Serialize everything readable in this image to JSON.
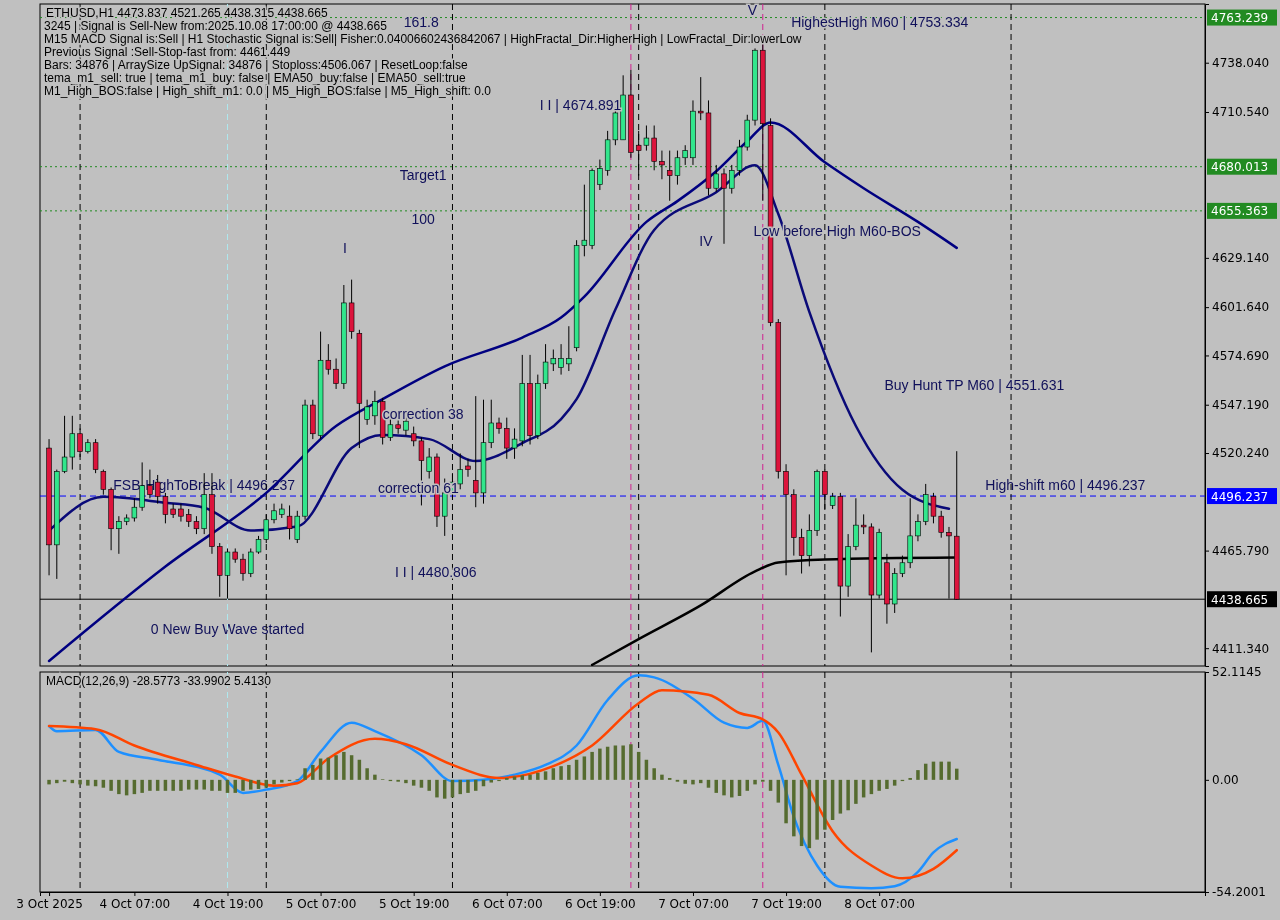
{
  "chart_data": [
    {
      "type": "candlestick",
      "title": "ETHUSD,H1  4473.837 4521.265 4438.315 4438.665",
      "annotations": [
        "3245 | Signal is Sell-New from:2025.10.08 17:00:00 @ 4438.665",
        "M15 MACD Signal is:Sell | H1 Stochastic Signal is:Sell| Fisher:0.04006602436842067 | HighFractal_Dir:HigherHigh | LowFractal_Dir:lowerLow",
        "Previous Signal :Sell-Stop-fast from: 4461.449",
        "Bars: 34876 | ArraySize UpSignal: 34876 | Stoploss:4506.067 | ResetLoop:false",
        "tema_m1_sell: true | tema_m1_buy: false | EMA50_buy:false | EMA50_sell:true",
        "M1_High_BOS:false | High_shift_m1: 0.0 | M5_High_BOS:false | M5_High_shift: 0.0",
        "161.8",
        "Target1",
        "100",
        "I",
        "I I | 4674.891",
        "I I | 4480.806",
        "correction 38",
        "correction 61",
        "IV",
        "V",
        "HighestHigh   M60 | 4753.334",
        "Low before High   M60-BOS",
        "Buy Hunt TP M60 | 4551.631",
        {
          "text": "High-shift m60 | 4496.237",
          "x": "2025-10-09T07:00",
          "y": 4496.237
        },
        {
          "text": "FSB-HighToBreak | 4496.237",
          "x": "2025-10-04T16:00",
          "y": 4496.237
        },
        {
          "text": "0 New Buy Wave started",
          "x": "2025-10-04T19:00",
          "y": 4416
        }
      ],
      "xlim": [
        "2025-10-03T18:50",
        "2025-10-10T01:00"
      ],
      "ylim": [
        4401.4,
        4770.8
      ],
      "yticks": [
        {
          "value": 4738.04,
          "label": "4738.040"
        },
        {
          "value": 4710.54,
          "label": "4710.540"
        },
        {
          "value": 4629.14,
          "label": "4629.140"
        },
        {
          "value": 4601.64,
          "label": "4601.640"
        },
        {
          "value": 4574.69,
          "label": "4574.690"
        },
        {
          "value": 4547.19,
          "label": "4547.190"
        },
        {
          "value": 4520.24,
          "label": "4520.240"
        },
        {
          "value": 4465.79,
          "label": "4465.790"
        },
        {
          "value": 4411.34,
          "label": "4411.340"
        }
      ],
      "tick_labels": "y",
      "ref_lines": [
        {
          "axis": "y",
          "value": 4763.239,
          "label": "4763.239",
          "color": "#228b22",
          "line_style": "dotted"
        },
        {
          "axis": "y",
          "value": 4680.013,
          "label": "4680.013",
          "color": "#228b22",
          "line_style": "dotted"
        },
        {
          "axis": "y",
          "value": 4655.363,
          "label": "4655.363",
          "color": "#228b22",
          "line_style": "dotted"
        },
        {
          "axis": "y",
          "value": 4496.237,
          "label": "4496.237",
          "color": "#0000ff",
          "line_style": "dashed"
        },
        {
          "axis": "y",
          "value": 4438.665,
          "label": "4438.665",
          "color": "#000000",
          "line_style": "solid"
        },
        {
          "axis": "x",
          "value": "2025-10-04T00:00",
          "color": "#000000",
          "line_style": "dashed"
        },
        {
          "axis": "x",
          "value": "2025-10-05T00:00",
          "color": "#000000",
          "line_style": "dashed"
        },
        {
          "axis": "x",
          "value": "2025-10-06T00:00",
          "color": "#000000",
          "line_style": "dashed"
        },
        {
          "axis": "x",
          "value": "2025-10-07T00:00",
          "color": "#000000",
          "line_style": "dashed"
        },
        {
          "axis": "x",
          "value": "2025-10-08T00:00",
          "color": "#000000",
          "line_style": "dashed"
        },
        {
          "axis": "x",
          "value": "2025-10-09T00:00",
          "color": "#000000",
          "line_style": "dashed"
        },
        {
          "axis": "x",
          "value": "2025-10-04T19:00",
          "color": "#aee8ee",
          "line_style": "dashed"
        },
        {
          "axis": "x",
          "value": "2025-10-06T23:00",
          "color": "#d02090",
          "line_style": "dashed"
        },
        {
          "axis": "x",
          "value": "2025-10-07T16:00",
          "color": "#d02090",
          "line_style": "dashed"
        }
      ],
      "x": [
        "2025-10-03T20:00",
        "2025-10-03T21:00",
        "2025-10-03T22:00",
        "2025-10-03T23:00",
        "2025-10-04T00:00",
        "2025-10-04T01:00",
        "2025-10-04T02:00",
        "2025-10-04T03:00",
        "2025-10-04T04:00",
        "2025-10-04T05:00",
        "2025-10-04T06:00",
        "2025-10-04T07:00",
        "2025-10-04T08:00",
        "2025-10-04T09:00",
        "2025-10-04T10:00",
        "2025-10-04T11:00",
        "2025-10-04T12:00",
        "2025-10-04T13:00",
        "2025-10-04T14:00",
        "2025-10-04T15:00",
        "2025-10-04T16:00",
        "2025-10-04T17:00",
        "2025-10-04T18:00",
        "2025-10-04T19:00",
        "2025-10-04T20:00",
        "2025-10-04T21:00",
        "2025-10-04T22:00",
        "2025-10-04T23:00",
        "2025-10-05T00:00",
        "2025-10-05T01:00",
        "2025-10-05T02:00",
        "2025-10-05T03:00",
        "2025-10-05T04:00",
        "2025-10-05T05:00",
        "2025-10-05T06:00",
        "2025-10-05T07:00",
        "2025-10-05T08:00",
        "2025-10-05T09:00",
        "2025-10-05T10:00",
        "2025-10-05T11:00",
        "2025-10-05T12:00",
        "2025-10-05T13:00",
        "2025-10-05T14:00",
        "2025-10-05T15:00",
        "2025-10-05T16:00",
        "2025-10-05T17:00",
        "2025-10-05T18:00",
        "2025-10-05T19:00",
        "2025-10-05T20:00",
        "2025-10-05T21:00",
        "2025-10-05T22:00",
        "2025-10-05T23:00",
        "2025-10-06T00:00",
        "2025-10-06T01:00",
        "2025-10-06T02:00",
        "2025-10-06T03:00",
        "2025-10-06T04:00",
        "2025-10-06T05:00",
        "2025-10-06T06:00",
        "2025-10-06T07:00",
        "2025-10-06T08:00",
        "2025-10-06T09:00",
        "2025-10-06T10:00",
        "2025-10-06T11:00",
        "2025-10-06T12:00",
        "2025-10-06T13:00",
        "2025-10-06T14:00",
        "2025-10-06T15:00",
        "2025-10-06T16:00",
        "2025-10-06T17:00",
        "2025-10-06T18:00",
        "2025-10-06T19:00",
        "2025-10-06T20:00",
        "2025-10-06T21:00",
        "2025-10-06T22:00",
        "2025-10-06T23:00",
        "2025-10-07T00:00",
        "2025-10-07T01:00",
        "2025-10-07T02:00",
        "2025-10-07T03:00",
        "2025-10-07T04:00",
        "2025-10-07T05:00",
        "2025-10-07T06:00",
        "2025-10-07T07:00",
        "2025-10-07T08:00",
        "2025-10-07T09:00",
        "2025-10-07T10:00",
        "2025-10-07T11:00",
        "2025-10-07T12:00",
        "2025-10-07T13:00",
        "2025-10-07T14:00",
        "2025-10-07T15:00",
        "2025-10-07T16:00",
        "2025-10-07T17:00",
        "2025-10-07T18:00",
        "2025-10-07T19:00",
        "2025-10-07T20:00",
        "2025-10-07T21:00",
        "2025-10-07T22:00",
        "2025-10-07T23:00",
        "2025-10-08T00:00",
        "2025-10-08T01:00",
        "2025-10-08T02:00",
        "2025-10-08T03:00",
        "2025-10-08T04:00",
        "2025-10-08T05:00",
        "2025-10-08T06:00",
        "2025-10-08T07:00",
        "2025-10-08T08:00",
        "2025-10-08T09:00",
        "2025-10-08T10:00",
        "2025-10-08T11:00",
        "2025-10-08T12:00",
        "2025-10-08T13:00",
        "2025-10-08T14:00",
        "2025-10-08T15:00",
        "2025-10-08T16:00",
        "2025-10-08T17:00"
      ],
      "ohlc": [
        [
          4523,
          4528,
          4452,
          4469
        ],
        [
          4469,
          4511,
          4450,
          4510
        ],
        [
          4510,
          4541,
          4509,
          4518
        ],
        [
          4518,
          4541,
          4511,
          4531
        ],
        [
          4531,
          4534,
          4518,
          4521
        ],
        [
          4521,
          4528,
          4520,
          4526
        ],
        [
          4526,
          4528,
          4509,
          4511
        ],
        [
          4510,
          4511,
          4497,
          4500
        ],
        [
          4500,
          4501,
          4466,
          4478
        ],
        [
          4478,
          4485,
          4464,
          4482
        ],
        [
          4482,
          4486,
          4480,
          4484
        ],
        [
          4484,
          4495,
          4482,
          4490
        ],
        [
          4490,
          4515,
          4488,
          4502
        ],
        [
          4502,
          4511,
          4495,
          4497
        ],
        [
          4504,
          4508,
          4492,
          4496
        ],
        [
          4496,
          4498,
          4481,
          4486
        ],
        [
          4489,
          4492,
          4484,
          4486
        ],
        [
          4489,
          4492,
          4482,
          4485
        ],
        [
          4486,
          4489,
          4479,
          4482
        ],
        [
          4482,
          4485,
          4475,
          4478
        ],
        [
          4478,
          4509,
          4475,
          4497
        ],
        [
          4497,
          4509,
          4464,
          4468
        ],
        [
          4468,
          4470,
          4440,
          4452
        ],
        [
          4452,
          4467,
          4439,
          4465
        ],
        [
          4465,
          4467,
          4459,
          4461
        ],
        [
          4461,
          4464,
          4449,
          4453
        ],
        [
          4453,
          4467,
          4451,
          4465
        ],
        [
          4465,
          4474,
          4464,
          4472
        ],
        [
          4472,
          4486,
          4470,
          4483
        ],
        [
          4483,
          4492,
          4481,
          4488
        ],
        [
          4486,
          4492,
          4484,
          4489
        ],
        [
          4485,
          4491,
          4472,
          4478
        ],
        [
          4472,
          4488,
          4470,
          4485
        ],
        [
          4485,
          4550,
          4483,
          4547
        ],
        [
          4547,
          4550,
          4528,
          4531
        ],
        [
          4530,
          4588,
          4528,
          4572
        ],
        [
          4572,
          4581,
          4564,
          4567
        ],
        [
          4567,
          4573,
          4556,
          4559
        ],
        [
          4559,
          4614,
          4556,
          4604
        ],
        [
          4604,
          4617,
          4584,
          4588
        ],
        [
          4587,
          4589,
          4523,
          4548
        ],
        [
          4539,
          4550,
          4536,
          4546
        ],
        [
          4541,
          4555,
          4536,
          4549
        ],
        [
          4549,
          4551,
          4525,
          4529
        ],
        [
          4529,
          4539,
          4527,
          4536
        ],
        [
          4536,
          4539,
          4531,
          4534
        ],
        [
          4533,
          4540,
          4530,
          4538
        ],
        [
          4531,
          4535,
          4524,
          4527
        ],
        [
          4527,
          4529,
          4491,
          4516
        ],
        [
          4510,
          4523,
          4506,
          4518
        ],
        [
          4518,
          4520,
          4479,
          4485
        ],
        [
          4485,
          4506,
          4474,
          4498
        ],
        [
          4498,
          4509,
          4495,
          4504
        ],
        [
          4503,
          4520,
          4500,
          4511
        ],
        [
          4513,
          4517,
          4507,
          4511
        ],
        [
          4505,
          4552,
          4490,
          4498
        ],
        [
          4498,
          4550,
          4492,
          4526
        ],
        [
          4526,
          4550,
          4523,
          4537
        ],
        [
          4537,
          4540,
          4531,
          4534
        ],
        [
          4534,
          4540,
          4517,
          4523
        ],
        [
          4523,
          4534,
          4517,
          4528
        ],
        [
          4527,
          4575,
          4524,
          4559
        ],
        [
          4559,
          4575,
          4525,
          4530
        ],
        [
          4530,
          4564,
          4528,
          4559
        ],
        [
          4559,
          4581,
          4556,
          4571
        ],
        [
          4570,
          4578,
          4566,
          4573
        ],
        [
          4568,
          4581,
          4564,
          4573
        ],
        [
          4570,
          4591,
          4566,
          4573
        ],
        [
          4579,
          4639,
          4577,
          4636
        ],
        [
          4636,
          4670,
          4630,
          4639
        ],
        [
          4636,
          4679,
          4634,
          4678
        ],
        [
          4670,
          4684,
          4667,
          4679
        ],
        [
          4678,
          4700,
          4675,
          4695
        ],
        [
          4695,
          4713,
          4692,
          4710
        ],
        [
          4695,
          4731,
          4695,
          4720
        ],
        [
          4720,
          4734,
          4685,
          4688
        ],
        [
          4692,
          4700,
          4675,
          4689
        ],
        [
          4692,
          4703,
          4689,
          4696
        ],
        [
          4696,
          4703,
          4678,
          4683
        ],
        [
          4683,
          4689,
          4673,
          4681
        ],
        [
          4678,
          4689,
          4661,
          4675
        ],
        [
          4675,
          4689,
          4670,
          4685
        ],
        [
          4685,
          4692,
          4681,
          4689
        ],
        [
          4685,
          4717,
          4681,
          4711
        ],
        [
          4711,
          4730,
          4706,
          4710
        ],
        [
          4710,
          4717,
          4664,
          4668
        ],
        [
          4668,
          4681,
          4666,
          4676
        ],
        [
          4676,
          4679,
          4637,
          4668
        ],
        [
          4668,
          4681,
          4665,
          4678
        ],
        [
          4678,
          4695,
          4675,
          4691
        ],
        [
          4691,
          4709,
          4689,
          4706
        ],
        [
          4706,
          4746,
          4703,
          4745
        ],
        [
          4745,
          4753,
          4661,
          4704
        ],
        [
          4703,
          4707,
          4591,
          4593
        ],
        [
          4593,
          4595,
          4506,
          4510
        ],
        [
          4510,
          4514,
          4452,
          4497
        ],
        [
          4497,
          4500,
          4463,
          4473
        ],
        [
          4473,
          4478,
          4453,
          4463
        ],
        [
          4463,
          4486,
          4457,
          4477
        ],
        [
          4477,
          4511,
          4474,
          4510
        ],
        [
          4510,
          4511,
          4489,
          4497
        ],
        [
          4491,
          4498,
          4489,
          4496
        ],
        [
          4496,
          4498,
          4429,
          4446
        ],
        [
          4446,
          4475,
          4440,
          4468
        ],
        [
          4468,
          4495,
          4466,
          4480
        ],
        [
          4480,
          4486,
          4475,
          4479
        ],
        [
          4479,
          4481,
          4409,
          4441
        ],
        [
          4441,
          4478,
          4439,
          4476
        ],
        [
          4459,
          4464,
          4425,
          4436
        ],
        [
          4436,
          4456,
          4431,
          4453
        ],
        [
          4453,
          4463,
          4451,
          4459
        ],
        [
          4459,
          4495,
          4456,
          4474
        ],
        [
          4474,
          4486,
          4471,
          4482
        ],
        [
          4482,
          4503,
          4480,
          4497
        ],
        [
          4496,
          4498,
          4481,
          4485
        ],
        [
          4485,
          4488,
          4473,
          4476
        ],
        [
          4476,
          4479,
          4439,
          4474
        ],
        [
          4473.837,
          4521.265,
          4438.315,
          4438.665
        ]
      ],
      "colors": [
        "#dc143c",
        "#32e68c",
        "#32e68c",
        "#32e68c",
        "#dc143c",
        "#32e68c",
        "#dc143c",
        "#dc143c",
        "#dc143c",
        "#32e68c",
        "#32e68c",
        "#32e68c",
        "#32e68c",
        "#dc143c",
        "#dc143c",
        "#dc143c",
        "#dc143c",
        "#dc143c",
        "#dc143c",
        "#dc143c",
        "#32e68c",
        "#dc143c",
        "#dc143c",
        "#32e68c",
        "#dc143c",
        "#dc143c",
        "#32e68c",
        "#32e68c",
        "#32e68c",
        "#32e68c",
        "#32e68c",
        "#dc143c",
        "#32e68c",
        "#32e68c",
        "#dc143c",
        "#32e68c",
        "#dc143c",
        "#dc143c",
        "#32e68c",
        "#dc143c",
        "#dc143c",
        "#32e68c",
        "#32e68c",
        "#dc143c",
        "#32e68c",
        "#dc143c",
        "#32e68c",
        "#dc143c",
        "#dc143c",
        "#32e68c",
        "#dc143c",
        "#32e68c",
        "#32e68c",
        "#32e68c",
        "#dc143c",
        "#dc143c",
        "#32e68c",
        "#32e68c",
        "#dc143c",
        "#dc143c",
        "#32e68c",
        "#32e68c",
        "#dc143c",
        "#32e68c",
        "#32e68c",
        "#32e68c",
        "#32e68c",
        "#32e68c",
        "#32e68c",
        "#32e68c",
        "#32e68c",
        "#32e68c",
        "#32e68c",
        "#32e68c",
        "#32e68c",
        "#dc143c",
        "#dc143c",
        "#32e68c",
        "#dc143c",
        "#dc143c",
        "#dc143c",
        "#32e68c",
        "#32e68c",
        "#32e68c",
        "#dc143c",
        "#dc143c",
        "#32e68c",
        "#dc143c",
        "#32e68c",
        "#32e68c",
        "#32e68c",
        "#32e68c",
        "#dc143c",
        "#dc143c",
        "#dc143c",
        "#dc143c",
        "#dc143c",
        "#dc143c",
        "#32e68c",
        "#32e68c",
        "#dc143c",
        "#32e68c",
        "#dc143c",
        "#32e68c",
        "#32e68c",
        "#dc143c",
        "#dc143c",
        "#32e68c",
        "#dc143c",
        "#32e68c",
        "#32e68c",
        "#32e68c",
        "#32e68c",
        "#32e68c",
        "#dc143c",
        "#dc143c",
        "#dc143c",
        "#dc143c"
      ],
      "series": [
        {
          "type": "line",
          "color": "#000080",
          "x": [
            "2025-10-03T20:00",
            "2025-10-04T11:00",
            "2025-10-05T00:00",
            "2025-10-05T09:00",
            "2025-10-05T15:00",
            "2025-10-05T23:00",
            "2025-10-06T09:00",
            "2025-10-06T14:00",
            "2025-10-06T17:00",
            "2025-10-07T01:00",
            "2025-10-07T05:00",
            "2025-10-07T10:00",
            "2025-10-07T14:00",
            "2025-10-07T17:00",
            "2025-10-08T00:00",
            "2025-10-08T05:00",
            "2025-10-08T12:00",
            "2025-10-08T17:00"
          ],
          "values": [
            4404.2,
            4456.9,
            4498,
            4535.3,
            4550.3,
            4568.6,
            4584.7,
            4595.8,
            4607.5,
            4649.2,
            4660.8,
            4677.5,
            4694.2,
            4704.7,
            4682.5,
            4668,
            4649.2,
            4634.7
          ]
        },
        {
          "type": "line",
          "color": "#0a0a78",
          "x": [
            "2025-10-03T20:00",
            "2025-10-04T03:00",
            "2025-10-04T11:00",
            "2025-10-04T16:00",
            "2025-10-04T22:00",
            "2025-10-05T04:00",
            "2025-10-05T11:00",
            "2025-10-05T15:00",
            "2025-10-05T21:00",
            "2025-10-06T03:00",
            "2025-10-06T09:00",
            "2025-10-06T14:00",
            "2025-10-06T16:00",
            "2025-10-06T21:00",
            "2025-10-07T02:00",
            "2025-10-07T10:00",
            "2025-10-07T15:00",
            "2025-10-07T18:00",
            "2025-10-07T22:00",
            "2025-10-08T04:00",
            "2025-10-08T10:00",
            "2025-10-08T16:00"
          ],
          "values": [
            4476.9,
            4495.8,
            4492.5,
            4489.7,
            4477,
            4479.2,
            4523,
            4530.3,
            4528,
            4515.8,
            4525.8,
            4539.2,
            4550.3,
            4600.3,
            4644.7,
            4665.8,
            4680.8,
            4653.6,
            4599,
            4535.3,
            4499.7,
            4489.1
          ]
        },
        {
          "type": "line",
          "color": "#000000",
          "x": [
            "2025-10-06T18:00",
            "2025-10-07T00:00",
            "2025-10-07T08:00",
            "2025-10-07T15:00",
            "2025-10-07T18:00",
            "2025-10-08T00:00",
            "2025-10-08T17:00"
          ],
          "values": [
            4402,
            4416.4,
            4435.2,
            4454.2,
            4459.2,
            4460.8,
            4461.9
          ]
        }
      ]
    },
    {
      "type": "bar",
      "title": "MACD(12,26,9) -28.5773 -33.9902 5.4130",
      "xlim": [
        "2025-10-03T18:50",
        "2025-10-10T01:00"
      ],
      "ylim": [
        -54.2001,
        52.1145
      ],
      "yticks": [
        52.1145,
        {
          "value": 0,
          "label": "0.00"
        },
        -54.2001
      ],
      "xticks": [
        {
          "value": "2025-10-03T20:00",
          "label": "3 Oct 2025"
        },
        {
          "value": "2025-10-04T07:00",
          "label": "4 Oct 07:00"
        },
        {
          "value": "2025-10-04T19:00",
          "label": "4 Oct 19:00"
        },
        {
          "value": "2025-10-05T07:00",
          "label": "5 Oct 07:00"
        },
        {
          "value": "2025-10-05T19:00",
          "label": "5 Oct 19:00"
        },
        {
          "value": "2025-10-06T07:00",
          "label": "6 Oct 07:00"
        },
        {
          "value": "2025-10-06T19:00",
          "label": "6 Oct 19:00"
        },
        {
          "value": "2025-10-07T07:00",
          "label": "7 Oct 07:00"
        },
        {
          "value": "2025-10-07T19:00",
          "label": "7 Oct 19:00"
        },
        {
          "value": "2025-10-08T07:00",
          "label": "8 Oct 07:00"
        }
      ],
      "ref_lines": [
        {
          "axis": "x",
          "value": "2025-10-04T00:00",
          "color": "#000000",
          "line_style": "dashed"
        },
        {
          "axis": "x",
          "value": "2025-10-05T00:00",
          "color": "#000000",
          "line_style": "dashed"
        },
        {
          "axis": "x",
          "value": "2025-10-06T00:00",
          "color": "#000000",
          "line_style": "dashed"
        },
        {
          "axis": "x",
          "value": "2025-10-07T00:00",
          "color": "#000000",
          "line_style": "dashed"
        },
        {
          "axis": "x",
          "value": "2025-10-08T00:00",
          "color": "#000000",
          "line_style": "dashed"
        },
        {
          "axis": "x",
          "value": "2025-10-09T00:00",
          "color": "#000000",
          "line_style": "dashed"
        },
        {
          "axis": "x",
          "value": "2025-10-04T19:00",
          "color": "#aee8ee",
          "line_style": "dashed"
        },
        {
          "axis": "x",
          "value": "2025-10-06T23:00",
          "color": "#d02090",
          "line_style": "dashed"
        },
        {
          "axis": "x",
          "value": "2025-10-07T16:00",
          "color": "#d02090",
          "line_style": "dashed"
        }
      ],
      "x": [
        "2025-10-03T20:00",
        "2025-10-03T21:00",
        "2025-10-03T22:00",
        "2025-10-03T23:00",
        "2025-10-04T00:00",
        "2025-10-04T01:00",
        "2025-10-04T02:00",
        "2025-10-04T03:00",
        "2025-10-04T04:00",
        "2025-10-04T05:00",
        "2025-10-04T06:00",
        "2025-10-04T07:00",
        "2025-10-04T08:00",
        "2025-10-04T09:00",
        "2025-10-04T10:00",
        "2025-10-04T11:00",
        "2025-10-04T12:00",
        "2025-10-04T13:00",
        "2025-10-04T14:00",
        "2025-10-04T15:00",
        "2025-10-04T16:00",
        "2025-10-04T17:00",
        "2025-10-04T18:00",
        "2025-10-04T19:00",
        "2025-10-04T20:00",
        "2025-10-04T21:00",
        "2025-10-04T22:00",
        "2025-10-04T23:00",
        "2025-10-05T00:00",
        "2025-10-05T01:00",
        "2025-10-05T02:00",
        "2025-10-05T03:00",
        "2025-10-05T04:00",
        "2025-10-05T05:00",
        "2025-10-05T06:00",
        "2025-10-05T07:00",
        "2025-10-05T08:00",
        "2025-10-05T09:00",
        "2025-10-05T10:00",
        "2025-10-05T11:00",
        "2025-10-05T12:00",
        "2025-10-05T13:00",
        "2025-10-05T14:00",
        "2025-10-05T15:00",
        "2025-10-05T16:00",
        "2025-10-05T17:00",
        "2025-10-05T18:00",
        "2025-10-05T19:00",
        "2025-10-05T20:00",
        "2025-10-05T21:00",
        "2025-10-05T22:00",
        "2025-10-05T23:00",
        "2025-10-06T00:00",
        "2025-10-06T01:00",
        "2025-10-06T02:00",
        "2025-10-06T03:00",
        "2025-10-06T04:00",
        "2025-10-06T05:00",
        "2025-10-06T06:00",
        "2025-10-06T07:00",
        "2025-10-06T08:00",
        "2025-10-06T09:00",
        "2025-10-06T10:00",
        "2025-10-06T11:00",
        "2025-10-06T12:00",
        "2025-10-06T13:00",
        "2025-10-06T14:00",
        "2025-10-06T15:00",
        "2025-10-06T16:00",
        "2025-10-06T17:00",
        "2025-10-06T18:00",
        "2025-10-06T19:00",
        "2025-10-06T20:00",
        "2025-10-06T21:00",
        "2025-10-06T22:00",
        "2025-10-06T23:00",
        "2025-10-07T00:00",
        "2025-10-07T01:00",
        "2025-10-07T02:00",
        "2025-10-07T03:00",
        "2025-10-07T04:00",
        "2025-10-07T05:00",
        "2025-10-07T06:00",
        "2025-10-07T07:00",
        "2025-10-07T08:00",
        "2025-10-07T09:00",
        "2025-10-07T10:00",
        "2025-10-07T11:00",
        "2025-10-07T12:00",
        "2025-10-07T13:00",
        "2025-10-07T14:00",
        "2025-10-07T15:00",
        "2025-10-07T16:00",
        "2025-10-07T17:00",
        "2025-10-07T18:00",
        "2025-10-07T19:00",
        "2025-10-07T20:00",
        "2025-10-07T21:00",
        "2025-10-07T22:00",
        "2025-10-07T23:00",
        "2025-10-08T00:00",
        "2025-10-08T01:00",
        "2025-10-08T02:00",
        "2025-10-08T03:00",
        "2025-10-08T04:00",
        "2025-10-08T05:00",
        "2025-10-08T06:00",
        "2025-10-08T07:00",
        "2025-10-08T08:00",
        "2025-10-08T09:00",
        "2025-10-08T10:00",
        "2025-10-08T11:00",
        "2025-10-08T12:00",
        "2025-10-08T13:00",
        "2025-10-08T14:00",
        "2025-10-08T15:00",
        "2025-10-08T16:00",
        "2025-10-08T17:00"
      ],
      "series": [
        {
          "color": "#556b2f",
          "values": [
            -2.2,
            -1.6,
            -0.9,
            -1.6,
            -2.2,
            -2.8,
            -3.1,
            -3.8,
            -5.3,
            -6.9,
            -7.5,
            -6.9,
            -6.3,
            -5.3,
            -5.3,
            -5.3,
            -5.3,
            -5.3,
            -4.7,
            -4.7,
            -4.7,
            -5.3,
            -5.3,
            -6.3,
            -6.3,
            -5.3,
            -4.7,
            -4.4,
            -3.8,
            -2.2,
            -1.3,
            -0.6,
            0.3,
            5.6,
            7.2,
            10.3,
            10.7,
            11.9,
            13.5,
            11.9,
            9.7,
            5.6,
            2.5,
            0.3,
            -0.6,
            -0.9,
            -1.6,
            -2.8,
            -3.8,
            -5.3,
            -8.5,
            -9.1,
            -8.5,
            -6.9,
            -6.3,
            -5.3,
            -3.1,
            -1.3,
            -0.6,
            0.9,
            1.6,
            2.2,
            2.5,
            3.4,
            4.1,
            5.6,
            6.6,
            7.2,
            9.7,
            11.3,
            13.5,
            15.1,
            16.0,
            16.6,
            16.6,
            17.2,
            13.5,
            9.7,
            5.6,
            2.5,
            0.9,
            -0.9,
            -1.9,
            -2.2,
            -1.6,
            -3.8,
            -6.3,
            -7.5,
            -8.5,
            -7.8,
            -5.3,
            -2.2,
            -0.9,
            -5.3,
            -11.0,
            -21.0,
            -27.3,
            -32.0,
            -33.0,
            -28.9,
            -24.1,
            -19.4,
            -16.3,
            -14.7,
            -11.6,
            -8.5,
            -6.9,
            -5.3,
            -4.4,
            -2.8,
            -0.6,
            0.9,
            4.7,
            7.8,
            8.8,
            8.8,
            8.8,
            5.4
          ]
        },
        {
          "type": "line",
          "color": "#1e90ff",
          "x": [
            "2025-10-03T20:00",
            "2025-10-03T21:00",
            "2025-10-04T02:00",
            "2025-10-04T05:00",
            "2025-10-04T10:00",
            "2025-10-04T18:00",
            "2025-10-04T21:00",
            "2025-10-05T00:00",
            "2025-10-05T04:00",
            "2025-10-05T07:00",
            "2025-10-05T11:00",
            "2025-10-05T14:00",
            "2025-10-05T20:00",
            "2025-10-06T00:00",
            "2025-10-06T04:00",
            "2025-10-06T08:00",
            "2025-10-06T12:00",
            "2025-10-06T16:00",
            "2025-10-06T20:00",
            "2025-10-07T00:00",
            "2025-10-07T02:00",
            "2025-10-07T07:00",
            "2025-10-07T11:00",
            "2025-10-07T14:00",
            "2025-10-07T16:00",
            "2025-10-07T18:00",
            "2025-10-07T20:00",
            "2025-10-07T23:00",
            "2025-10-08T02:00",
            "2025-10-08T06:00",
            "2025-10-08T09:00",
            "2025-10-08T12:00",
            "2025-10-08T14:00",
            "2025-10-08T17:00"
          ],
          "values": [
            26.0,
            23.5,
            24.1,
            13.5,
            9.7,
            2.5,
            -6.3,
            -4.7,
            -0.6,
            13.5,
            27.6,
            23.5,
            11.9,
            -0.6,
            0,
            2.5,
            7.2,
            16.6,
            38.6,
            50.5,
            49.5,
            39.2,
            27.6,
            25.1,
            28.5,
            7.2,
            -17.9,
            -41.4,
            -51.7,
            -52.4,
            -51.4,
            -44.5,
            -35.1,
            -28.6
          ]
        },
        {
          "type": "line",
          "color": "#ff4500",
          "x": [
            "2025-10-03T20:00",
            "2025-10-04T02:00",
            "2025-10-04T07:00",
            "2025-10-04T15:00",
            "2025-10-04T20:00",
            "2025-10-05T01:00",
            "2025-10-05T04:00",
            "2025-10-05T08:00",
            "2025-10-05T14:00",
            "2025-10-05T18:00",
            "2025-10-06T00:00",
            "2025-10-06T06:00",
            "2025-10-06T13:00",
            "2025-10-06T18:00",
            "2025-10-07T00:00",
            "2025-10-07T03:00",
            "2025-10-07T09:00",
            "2025-10-07T13:00",
            "2025-10-07T16:00",
            "2025-10-07T18:00",
            "2025-10-07T21:00",
            "2025-10-08T01:00",
            "2025-10-08T06:00",
            "2025-10-08T10:00",
            "2025-10-08T14:00",
            "2025-10-08T17:00"
          ],
          "values": [
            26.0,
            24.5,
            16.6,
            7.2,
            1.6,
            -2.8,
            -1.6,
            10.3,
            19.8,
            17.2,
            7.2,
            0.9,
            6.6,
            16.6,
            37,
            43.3,
            41.1,
            32.3,
            29.2,
            22.9,
            2.5,
            -24.8,
            -41.4,
            -47.6,
            -43,
            -34.0
          ]
        }
      ]
    }
  ]
}
